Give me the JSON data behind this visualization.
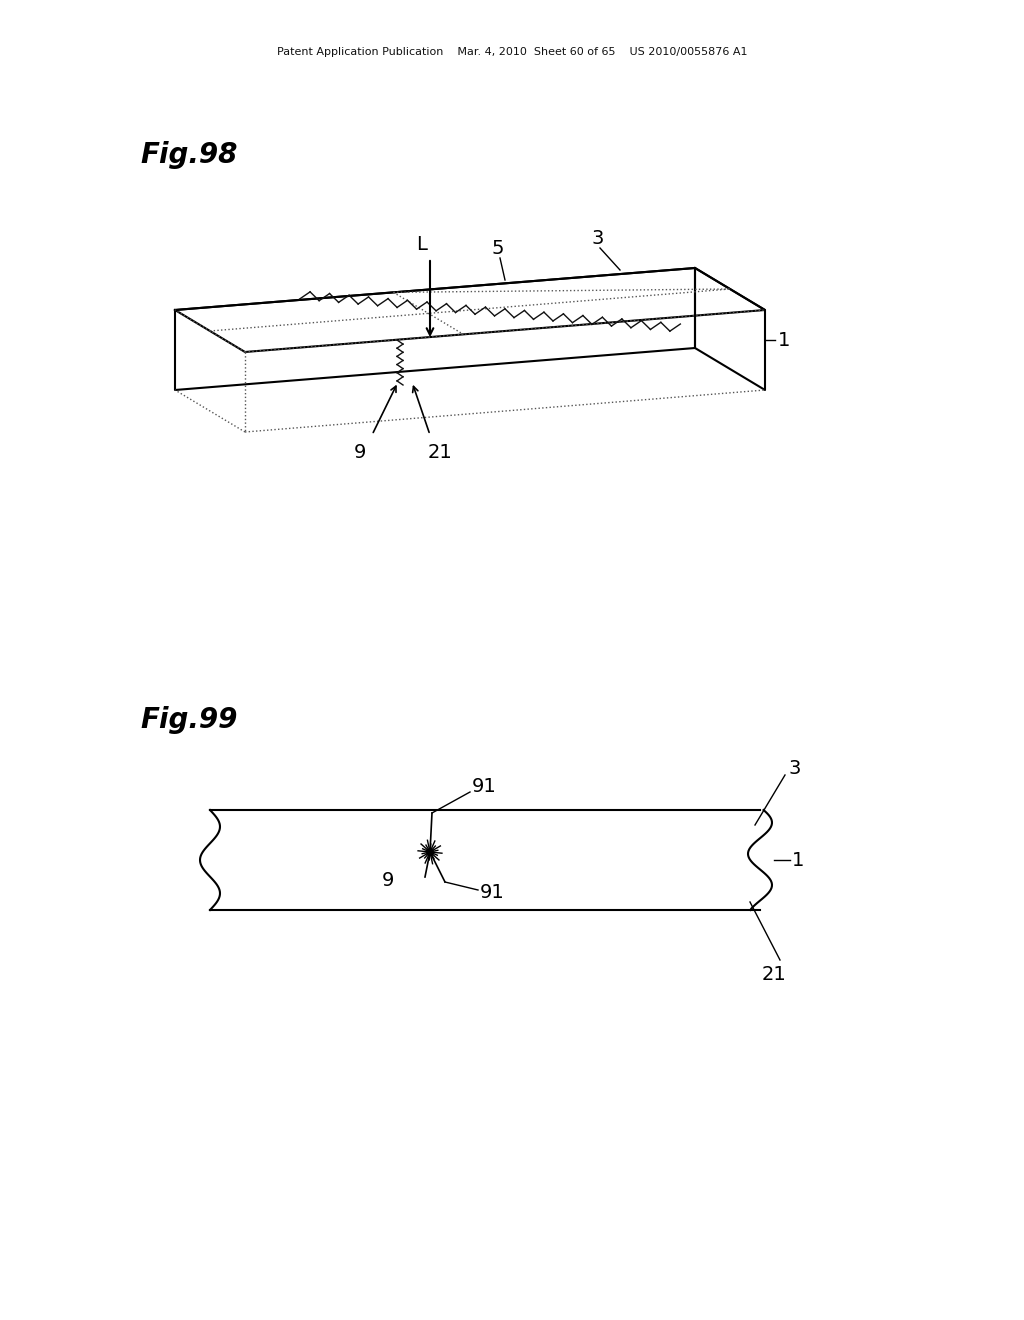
{
  "bg_color": "#ffffff",
  "header_text": "Patent Application Publication    Mar. 4, 2010  Sheet 60 of 65    US 2010/0055876 A1",
  "fig98_label": "Fig.98",
  "fig99_label": "Fig.99"
}
